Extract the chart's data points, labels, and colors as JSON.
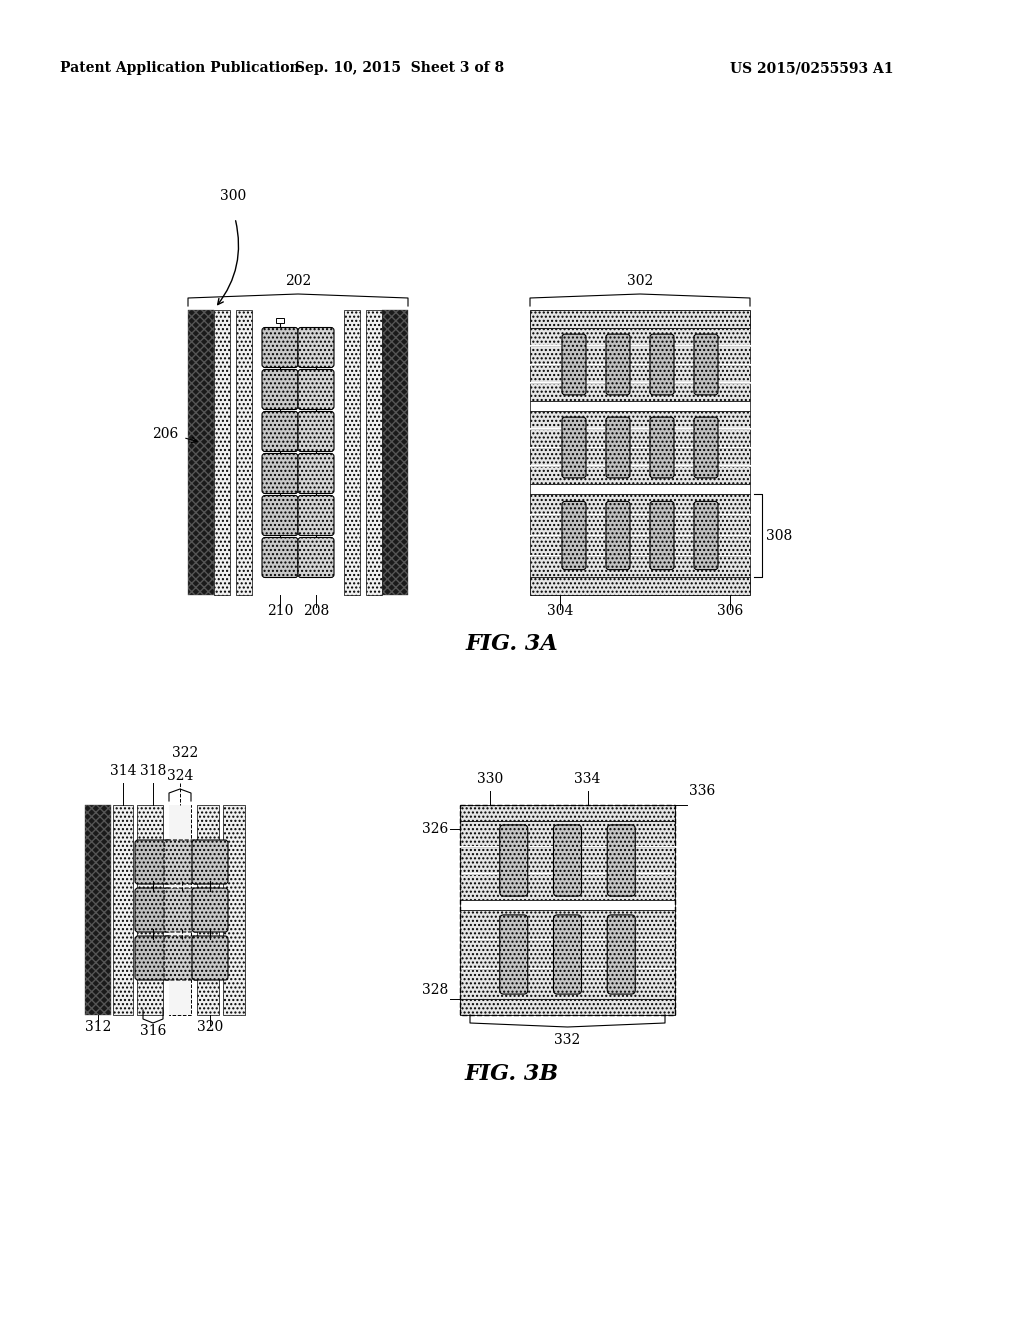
{
  "bg_color": "#ffffff",
  "header_left": "Patent Application Publication",
  "header_mid": "Sep. 10, 2015  Sheet 3 of 8",
  "header_right": "US 2015/0255593 A1",
  "fig3a_label": "FIG. 3A",
  "fig3b_label": "FIG. 3B",
  "label_300": "300",
  "label_202": "202",
  "label_206": "206",
  "label_210": "210",
  "label_208": "208",
  "label_302": "302",
  "label_304": "304",
  "label_306": "306",
  "label_308": "308",
  "label_314": "314",
  "label_316": "316",
  "label_318": "318",
  "label_320": "320",
  "label_322": "322",
  "label_324": "324",
  "label_312": "312",
  "label_326": "326",
  "label_328": "328",
  "label_330": "330",
  "label_332": "332",
  "label_334": "334",
  "label_336": "336"
}
